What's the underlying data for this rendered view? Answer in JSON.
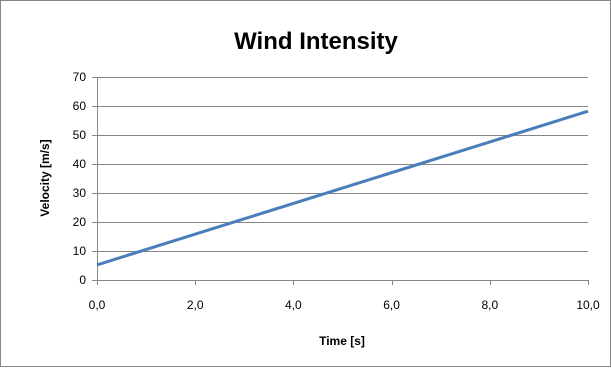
{
  "chart_data": {
    "type": "line",
    "title": "Wind Intensity",
    "xlabel": "Time [s]",
    "ylabel": "Velocity [m/s]",
    "xlim": [
      0,
      10
    ],
    "ylim": [
      0,
      70
    ],
    "x_ticks": [
      "0,0",
      "2,0",
      "4,0",
      "6,0",
      "8,0",
      "10,0"
    ],
    "x_tick_values": [
      0,
      2,
      4,
      6,
      8,
      10
    ],
    "y_ticks": [
      "0",
      "10",
      "20",
      "30",
      "40",
      "50",
      "60",
      "70"
    ],
    "y_tick_values": [
      0,
      10,
      20,
      30,
      40,
      50,
      60,
      70
    ],
    "grid": "horizontal",
    "legend": "none",
    "series": [
      {
        "x": [
          0,
          10
        ],
        "values": [
          5.2,
          58.2
        ],
        "color": "#4a7ebb"
      }
    ]
  }
}
